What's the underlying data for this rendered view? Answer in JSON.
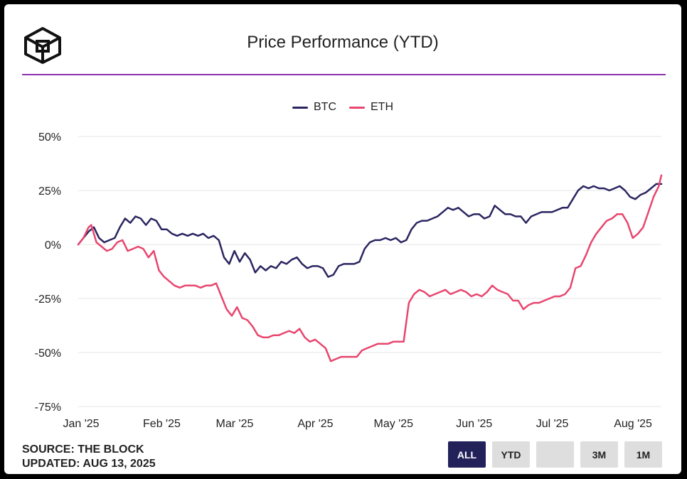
{
  "header": {
    "title": "Price Performance (YTD)"
  },
  "source": {
    "line1": "SOURCE: THE BLOCK",
    "line2": "UPDATED: AUG 13, 2025"
  },
  "range_buttons": [
    {
      "label": "ALL",
      "active": true
    },
    {
      "label": "YTD",
      "active": false
    },
    {
      "label": "",
      "active": false
    },
    {
      "label": "3M",
      "active": false
    },
    {
      "label": "1M",
      "active": false
    }
  ],
  "colors": {
    "btc": "#2a2560",
    "eth": "#e8466e",
    "grid": "#e6e6e6",
    "divider": "#8e2fb0",
    "active_button": "#23215a"
  },
  "chart_data": {
    "type": "line",
    "title": "Price Performance (YTD)",
    "xlabel": "",
    "ylabel": "",
    "ylim": [
      -75,
      50
    ],
    "y_ticks": [
      50,
      25,
      0,
      -25,
      -50,
      -75
    ],
    "y_tick_labels": [
      "50%",
      "25%",
      "0%",
      "-25%",
      "-50%",
      "-75%"
    ],
    "x_tick_labels": [
      "Jan '25",
      "Feb '25",
      "Mar '25",
      "Apr '25",
      "May '25",
      "Jun '25",
      "Jul '25",
      "Aug '25"
    ],
    "x_tick_positions": [
      "2025-01-01",
      "2025-02-01",
      "2025-03-01",
      "2025-04-01",
      "2025-05-01",
      "2025-06-01",
      "2025-07-01",
      "2025-08-01"
    ],
    "x_range": [
      "2025-01-01",
      "2025-08-13"
    ],
    "grid": true,
    "legend": "top-center",
    "series": [
      {
        "name": "BTC",
        "points": [
          [
            "2025-01-01",
            0
          ],
          [
            "2025-01-03",
            3
          ],
          [
            "2025-01-05",
            6
          ],
          [
            "2025-01-07",
            8
          ],
          [
            "2025-01-09",
            3
          ],
          [
            "2025-01-11",
            1
          ],
          [
            "2025-01-13",
            2
          ],
          [
            "2025-01-15",
            3
          ],
          [
            "2025-01-17",
            8
          ],
          [
            "2025-01-19",
            12
          ],
          [
            "2025-01-21",
            10
          ],
          [
            "2025-01-23",
            13
          ],
          [
            "2025-01-25",
            12
          ],
          [
            "2025-01-27",
            9
          ],
          [
            "2025-01-29",
            12
          ],
          [
            "2025-01-31",
            11
          ],
          [
            "2025-02-02",
            7
          ],
          [
            "2025-02-04",
            7
          ],
          [
            "2025-02-06",
            5
          ],
          [
            "2025-02-08",
            4
          ],
          [
            "2025-02-10",
            5
          ],
          [
            "2025-02-12",
            4
          ],
          [
            "2025-02-14",
            5
          ],
          [
            "2025-02-16",
            4
          ],
          [
            "2025-02-18",
            5
          ],
          [
            "2025-02-20",
            3
          ],
          [
            "2025-02-22",
            4
          ],
          [
            "2025-02-24",
            2
          ],
          [
            "2025-02-26",
            -6
          ],
          [
            "2025-02-28",
            -9
          ],
          [
            "2025-03-02",
            -3
          ],
          [
            "2025-03-04",
            -8
          ],
          [
            "2025-03-06",
            -4
          ],
          [
            "2025-03-08",
            -7
          ],
          [
            "2025-03-10",
            -13
          ],
          [
            "2025-03-12",
            -10
          ],
          [
            "2025-03-14",
            -12
          ],
          [
            "2025-03-16",
            -10
          ],
          [
            "2025-03-18",
            -11
          ],
          [
            "2025-03-20",
            -8
          ],
          [
            "2025-03-22",
            -9
          ],
          [
            "2025-03-24",
            -7
          ],
          [
            "2025-03-26",
            -6
          ],
          [
            "2025-03-28",
            -9
          ],
          [
            "2025-03-30",
            -11
          ],
          [
            "2025-04-01",
            -10
          ],
          [
            "2025-04-03",
            -10
          ],
          [
            "2025-04-05",
            -11
          ],
          [
            "2025-04-07",
            -15
          ],
          [
            "2025-04-09",
            -14
          ],
          [
            "2025-04-11",
            -10
          ],
          [
            "2025-04-13",
            -9
          ],
          [
            "2025-04-15",
            -9
          ],
          [
            "2025-04-17",
            -9
          ],
          [
            "2025-04-19",
            -8
          ],
          [
            "2025-04-21",
            -2
          ],
          [
            "2025-04-23",
            1
          ],
          [
            "2025-04-25",
            2
          ],
          [
            "2025-04-27",
            2
          ],
          [
            "2025-04-29",
            3
          ],
          [
            "2025-05-01",
            2
          ],
          [
            "2025-05-03",
            3
          ],
          [
            "2025-05-05",
            1
          ],
          [
            "2025-05-07",
            2
          ],
          [
            "2025-05-09",
            7
          ],
          [
            "2025-05-11",
            10
          ],
          [
            "2025-05-13",
            11
          ],
          [
            "2025-05-15",
            11
          ],
          [
            "2025-05-17",
            12
          ],
          [
            "2025-05-19",
            13
          ],
          [
            "2025-05-21",
            15
          ],
          [
            "2025-05-23",
            17
          ],
          [
            "2025-05-25",
            16
          ],
          [
            "2025-05-27",
            17
          ],
          [
            "2025-05-29",
            15
          ],
          [
            "2025-05-31",
            13
          ],
          [
            "2025-06-02",
            14
          ],
          [
            "2025-06-04",
            14
          ],
          [
            "2025-06-06",
            12
          ],
          [
            "2025-06-08",
            13
          ],
          [
            "2025-06-10",
            18
          ],
          [
            "2025-06-12",
            16
          ],
          [
            "2025-06-14",
            14
          ],
          [
            "2025-06-16",
            14
          ],
          [
            "2025-06-18",
            13
          ],
          [
            "2025-06-20",
            13
          ],
          [
            "2025-06-22",
            10
          ],
          [
            "2025-06-24",
            13
          ],
          [
            "2025-06-26",
            14
          ],
          [
            "2025-06-28",
            15
          ],
          [
            "2025-06-30",
            15
          ],
          [
            "2025-07-02",
            15
          ],
          [
            "2025-07-04",
            16
          ],
          [
            "2025-07-06",
            17
          ],
          [
            "2025-07-08",
            17
          ],
          [
            "2025-07-10",
            21
          ],
          [
            "2025-07-12",
            25
          ],
          [
            "2025-07-14",
            27
          ],
          [
            "2025-07-16",
            26
          ],
          [
            "2025-07-18",
            27
          ],
          [
            "2025-07-20",
            26
          ],
          [
            "2025-07-22",
            26
          ],
          [
            "2025-07-24",
            25
          ],
          [
            "2025-07-26",
            26
          ],
          [
            "2025-07-28",
            27
          ],
          [
            "2025-07-30",
            25
          ],
          [
            "2025-08-01",
            22
          ],
          [
            "2025-08-03",
            21
          ],
          [
            "2025-08-05",
            23
          ],
          [
            "2025-08-07",
            24
          ],
          [
            "2025-08-09",
            26
          ],
          [
            "2025-08-11",
            28
          ],
          [
            "2025-08-13",
            28
          ]
        ]
      },
      {
        "name": "ETH",
        "points": [
          [
            "2025-01-01",
            0
          ],
          [
            "2025-01-03",
            3
          ],
          [
            "2025-01-05",
            8
          ],
          [
            "2025-01-06",
            9
          ],
          [
            "2025-01-08",
            1
          ],
          [
            "2025-01-10",
            -1
          ],
          [
            "2025-01-12",
            -3
          ],
          [
            "2025-01-14",
            -2
          ],
          [
            "2025-01-16",
            1
          ],
          [
            "2025-01-18",
            2
          ],
          [
            "2025-01-20",
            -3
          ],
          [
            "2025-01-22",
            -2
          ],
          [
            "2025-01-24",
            -1
          ],
          [
            "2025-01-26",
            -2
          ],
          [
            "2025-01-28",
            -6
          ],
          [
            "2025-01-30",
            -3
          ],
          [
            "2025-02-01",
            -12
          ],
          [
            "2025-02-03",
            -15
          ],
          [
            "2025-02-05",
            -17
          ],
          [
            "2025-02-07",
            -19
          ],
          [
            "2025-02-09",
            -20
          ],
          [
            "2025-02-11",
            -19
          ],
          [
            "2025-02-13",
            -19
          ],
          [
            "2025-02-15",
            -19
          ],
          [
            "2025-02-17",
            -20
          ],
          [
            "2025-02-19",
            -19
          ],
          [
            "2025-02-21",
            -19
          ],
          [
            "2025-02-23",
            -18
          ],
          [
            "2025-02-25",
            -24
          ],
          [
            "2025-02-27",
            -30
          ],
          [
            "2025-03-01",
            -33
          ],
          [
            "2025-03-03",
            -29
          ],
          [
            "2025-03-05",
            -34
          ],
          [
            "2025-03-07",
            -35
          ],
          [
            "2025-03-09",
            -38
          ],
          [
            "2025-03-11",
            -42
          ],
          [
            "2025-03-13",
            -43
          ],
          [
            "2025-03-15",
            -43
          ],
          [
            "2025-03-17",
            -42
          ],
          [
            "2025-03-19",
            -42
          ],
          [
            "2025-03-21",
            -41
          ],
          [
            "2025-03-23",
            -40
          ],
          [
            "2025-03-25",
            -41
          ],
          [
            "2025-03-27",
            -39
          ],
          [
            "2025-03-29",
            -43
          ],
          [
            "2025-03-31",
            -45
          ],
          [
            "2025-04-02",
            -44
          ],
          [
            "2025-04-04",
            -46
          ],
          [
            "2025-04-06",
            -48
          ],
          [
            "2025-04-08",
            -54
          ],
          [
            "2025-04-10",
            -53
          ],
          [
            "2025-04-12",
            -52
          ],
          [
            "2025-04-14",
            -52
          ],
          [
            "2025-04-16",
            -52
          ],
          [
            "2025-04-18",
            -52
          ],
          [
            "2025-04-20",
            -49
          ],
          [
            "2025-04-22",
            -48
          ],
          [
            "2025-04-24",
            -47
          ],
          [
            "2025-04-26",
            -46
          ],
          [
            "2025-04-28",
            -46
          ],
          [
            "2025-04-30",
            -46
          ],
          [
            "2025-05-02",
            -45
          ],
          [
            "2025-05-04",
            -45
          ],
          [
            "2025-05-06",
            -45
          ],
          [
            "2025-05-08",
            -27
          ],
          [
            "2025-05-10",
            -23
          ],
          [
            "2025-05-12",
            -21
          ],
          [
            "2025-05-14",
            -22
          ],
          [
            "2025-05-16",
            -24
          ],
          [
            "2025-05-18",
            -23
          ],
          [
            "2025-05-20",
            -22
          ],
          [
            "2025-05-22",
            -21
          ],
          [
            "2025-05-24",
            -23
          ],
          [
            "2025-05-26",
            -22
          ],
          [
            "2025-05-28",
            -21
          ],
          [
            "2025-05-30",
            -22
          ],
          [
            "2025-06-01",
            -24
          ],
          [
            "2025-06-03",
            -23
          ],
          [
            "2025-06-05",
            -24
          ],
          [
            "2025-06-07",
            -22
          ],
          [
            "2025-06-09",
            -19
          ],
          [
            "2025-06-11",
            -21
          ],
          [
            "2025-06-13",
            -22
          ],
          [
            "2025-06-15",
            -23
          ],
          [
            "2025-06-17",
            -26
          ],
          [
            "2025-06-19",
            -26
          ],
          [
            "2025-06-21",
            -30
          ],
          [
            "2025-06-23",
            -28
          ],
          [
            "2025-06-25",
            -27
          ],
          [
            "2025-06-27",
            -27
          ],
          [
            "2025-06-29",
            -26
          ],
          [
            "2025-07-01",
            -25
          ],
          [
            "2025-07-03",
            -24
          ],
          [
            "2025-07-05",
            -24
          ],
          [
            "2025-07-07",
            -23
          ],
          [
            "2025-07-09",
            -20
          ],
          [
            "2025-07-11",
            -11
          ],
          [
            "2025-07-13",
            -10
          ],
          [
            "2025-07-15",
            -5
          ],
          [
            "2025-07-17",
            1
          ],
          [
            "2025-07-19",
            5
          ],
          [
            "2025-07-21",
            8
          ],
          [
            "2025-07-23",
            11
          ],
          [
            "2025-07-25",
            12
          ],
          [
            "2025-07-27",
            14
          ],
          [
            "2025-07-29",
            14
          ],
          [
            "2025-07-31",
            10
          ],
          [
            "2025-08-02",
            3
          ],
          [
            "2025-08-04",
            5
          ],
          [
            "2025-08-06",
            8
          ],
          [
            "2025-08-08",
            15
          ],
          [
            "2025-08-10",
            22
          ],
          [
            "2025-08-12",
            27
          ],
          [
            "2025-08-13",
            32
          ]
        ]
      }
    ]
  }
}
